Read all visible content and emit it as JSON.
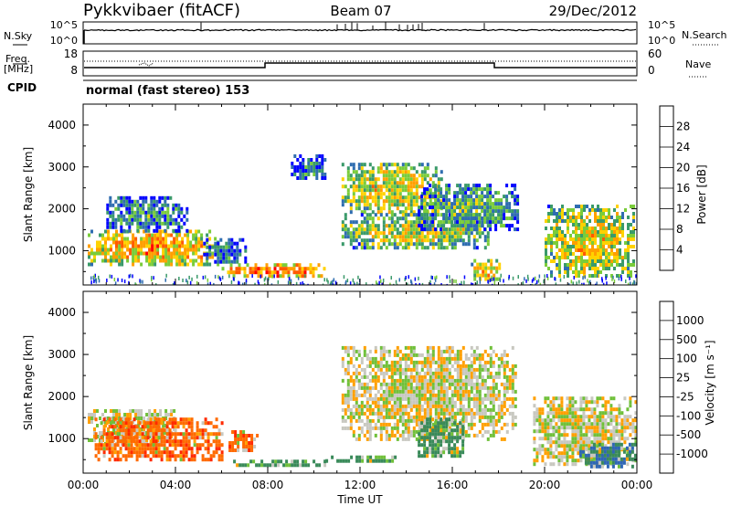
{
  "header": {
    "title": "Pykkvibaer (fitACF)",
    "beam": "Beam 07",
    "date": "29/Dec/2012"
  },
  "noise_panel": {
    "left_label": "N.Sky",
    "left_ticks": [
      "10^5",
      "10^0"
    ],
    "right_label": "N.Search",
    "right_ticks": [
      "10^5",
      "10^0"
    ]
  },
  "freq_panel": {
    "left_label_1": "Freq.",
    "left_label_2": "[MHz]",
    "left_ticks": [
      "18",
      "8"
    ],
    "right_label": "Nave",
    "right_ticks": [
      "60",
      "0"
    ]
  },
  "cpid": {
    "label": "CPID",
    "value": "normal (fast stereo) 153"
  },
  "colorbars": {
    "power": {
      "label": "Power [dB]",
      "ticks": [
        "28",
        "24",
        "20",
        "16",
        "12",
        "8",
        "4"
      ],
      "colors": [
        "#ff0000",
        "#ff5a00",
        "#ff9f00",
        "#ffd200",
        "#7acc3a",
        "#3a9a6a",
        "#2f6db0",
        "#0000ff"
      ]
    },
    "velocity": {
      "label": "Velocity [m s⁻¹]",
      "ticks": [
        "1000",
        "500",
        "100",
        "25",
        "-25",
        "-100",
        "-500",
        "-1000"
      ],
      "colors": [
        "#2b3fb0",
        "#2f66b5",
        "#3a8a5a",
        "#70c03a",
        "#c8c8c0",
        "#ffa000",
        "#ff6a00",
        "#ff2a00",
        "#e00000"
      ]
    }
  },
  "chart_data": [
    {
      "type": "heatmap",
      "title": "Power",
      "ylabel": "Slant Range [km]",
      "xlabel": "",
      "y_ticks": [
        "1000",
        "2000",
        "3000",
        "4000"
      ],
      "ylim": [
        180,
        4500
      ],
      "x_ticks": [
        "00:00",
        "04:00",
        "08:00",
        "12:00",
        "16:00",
        "20:00",
        "00:00"
      ],
      "xlim": [
        0,
        24
      ],
      "blobs": [
        {
          "x": [
            0.2,
            5.8
          ],
          "y": [
            700,
            1500
          ],
          "value": 22
        },
        {
          "x": [
            1.0,
            4.5
          ],
          "y": [
            1500,
            2300
          ],
          "value": 10
        },
        {
          "x": [
            5.2,
            7.0
          ],
          "y": [
            700,
            1300
          ],
          "value": 8
        },
        {
          "x": [
            6.0,
            10.5
          ],
          "y": [
            400,
            700
          ],
          "value": 25
        },
        {
          "x": [
            9.0,
            10.5
          ],
          "y": [
            2700,
            3300
          ],
          "value": 8
        },
        {
          "x": [
            11.2,
            15.5
          ],
          "y": [
            1900,
            3100
          ],
          "value": 18
        },
        {
          "x": [
            11.2,
            17.5
          ],
          "y": [
            1100,
            1900
          ],
          "value": 16
        },
        {
          "x": [
            14.5,
            18.8
          ],
          "y": [
            1500,
            2600
          ],
          "value": 12
        },
        {
          "x": [
            16.8,
            18.0
          ],
          "y": [
            300,
            800
          ],
          "value": 20
        },
        {
          "x": [
            20.0,
            23.9
          ],
          "y": [
            400,
            2100
          ],
          "value": 18
        }
      ]
    },
    {
      "type": "heatmap",
      "title": "Velocity",
      "ylabel": "Slant Range [km]",
      "xlabel": "Time UT",
      "y_ticks": [
        "1000",
        "2000",
        "3000",
        "4000"
      ],
      "ylim": [
        180,
        4500
      ],
      "x_ticks": [
        "00:00",
        "04:00",
        "08:00",
        "12:00",
        "16:00",
        "20:00",
        "00:00"
      ],
      "xlim": [
        0,
        24
      ],
      "blobs": [
        {
          "x": [
            0.2,
            4.0
          ],
          "y": [
            900,
            1700
          ],
          "value": 0
        },
        {
          "x": [
            0.5,
            6.0
          ],
          "y": [
            500,
            1500
          ],
          "value": -300
        },
        {
          "x": [
            6.3,
            7.5
          ],
          "y": [
            700,
            1200
          ],
          "value": -300
        },
        {
          "x": [
            6.5,
            10.5
          ],
          "y": [
            350,
            500
          ],
          "value": 150
        },
        {
          "x": [
            10.5,
            13.5
          ],
          "y": [
            500,
            600
          ],
          "value": 150
        },
        {
          "x": [
            11.2,
            18.8
          ],
          "y": [
            1000,
            3200
          ],
          "value": 0
        },
        {
          "x": [
            14.5,
            16.5
          ],
          "y": [
            600,
            1500
          ],
          "value": 200
        },
        {
          "x": [
            19.5,
            23.9
          ],
          "y": [
            400,
            2000
          ],
          "value": 0
        },
        {
          "x": [
            21.5,
            23.9
          ],
          "y": [
            350,
            900
          ],
          "value": 400
        }
      ]
    }
  ]
}
